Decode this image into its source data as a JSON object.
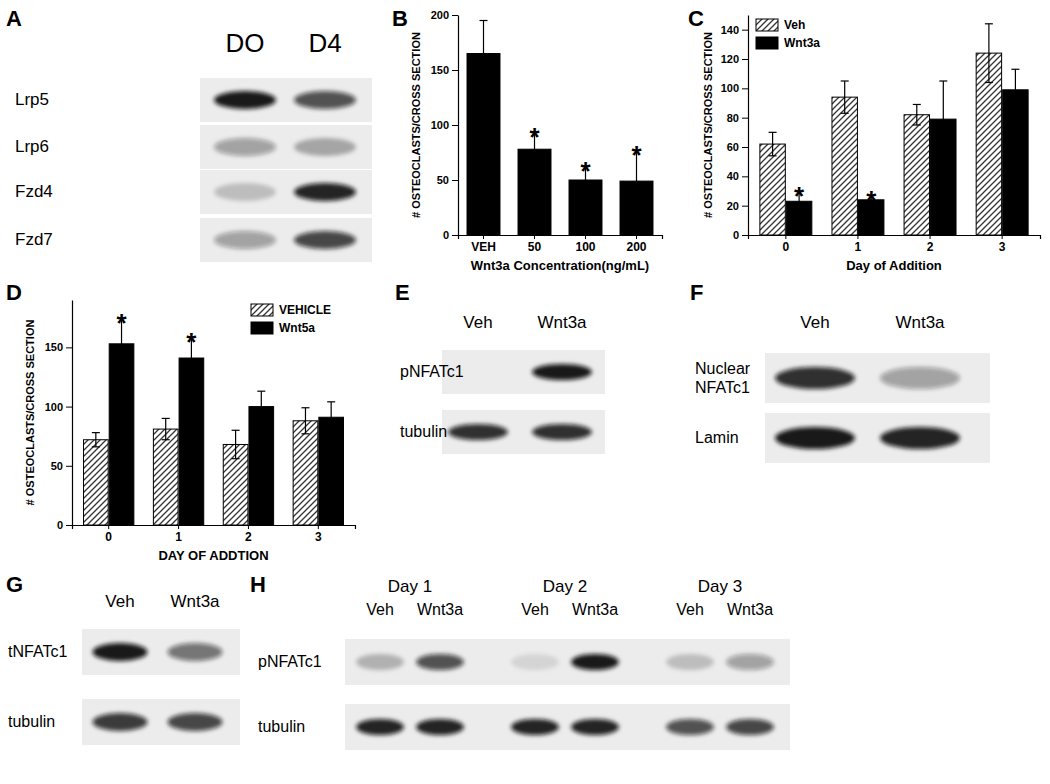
{
  "chart_data": [
    {
      "type": "bar",
      "title": "B",
      "categories": [
        "VEH",
        "50",
        "100",
        "200"
      ],
      "values": [
        165,
        78,
        50,
        49
      ],
      "errors": [
        30,
        16,
        13,
        28
      ],
      "annotations": [
        null,
        "*",
        "*",
        "*"
      ],
      "color": "#000000",
      "xlabel": "Wnt3a Concentration(ng/mL)",
      "ylabel": "# OSTEOCLASTS/CROSS SECTION",
      "ylim": [
        0,
        200
      ],
      "yticks": [
        0,
        50,
        100,
        150,
        200
      ]
    },
    {
      "type": "bar",
      "title": "C",
      "categories": [
        "0",
        "1",
        "2",
        "3"
      ],
      "series": [
        {
          "name": "Veh",
          "color": "#333333",
          "values": [
            62,
            94,
            82,
            124
          ],
          "errors": [
            8,
            11,
            7,
            20
          ]
        },
        {
          "name": "Wnt3a",
          "color": "#000000",
          "values": [
            23,
            24,
            79,
            99
          ],
          "errors": [
            7,
            3,
            26,
            14
          ],
          "annotations": [
            "*",
            "*",
            null,
            null
          ]
        }
      ],
      "xlabel": "Day of Addition",
      "ylabel": "# OSTEOCLASTS/CROSS SECTION",
      "ylim": [
        0,
        150
      ],
      "yticks": [
        0,
        20,
        40,
        60,
        80,
        100,
        120,
        140
      ],
      "legend": "top-left"
    },
    {
      "type": "bar",
      "title": "D",
      "categories": [
        "0",
        "1",
        "2",
        "3"
      ],
      "series": [
        {
          "name": "VEHICLE",
          "color": "#333333",
          "values": [
            72,
            81,
            68,
            88
          ],
          "errors": [
            6,
            9,
            12,
            11
          ]
        },
        {
          "name": "Wnt5a",
          "color": "#000000",
          "values": [
            153,
            141,
            100,
            91
          ],
          "errors": [
            22,
            18,
            13,
            13
          ],
          "annotations": [
            "*",
            "*",
            null,
            null
          ]
        }
      ],
      "xlabel": "DAY OF ADDTION",
      "ylabel": "# OSTEOCLASTS/CROSS SECTION",
      "ylim": [
        0,
        190
      ],
      "yticks": [
        0,
        50,
        100,
        150
      ],
      "legend": "top-right"
    }
  ],
  "blots": [
    {
      "title": "A",
      "lanes": [
        "DO",
        "D4"
      ],
      "rows": [
        {
          "label": "Lrp5",
          "intensity": [
            0.95,
            0.7
          ]
        },
        {
          "label": "Lrp6",
          "intensity": [
            0.35,
            0.3
          ]
        },
        {
          "label": "Fzd4",
          "intensity": [
            0.2,
            0.9
          ]
        },
        {
          "label": "Fzd7",
          "intensity": [
            0.35,
            0.75
          ]
        }
      ]
    },
    {
      "title": "E",
      "lanes": [
        "Veh",
        "Wnt3a"
      ],
      "rows": [
        {
          "label": "pNFATc1",
          "intensity": [
            0,
            0.95
          ]
        },
        {
          "label": "tubulin",
          "intensity": [
            0.85,
            0.85
          ]
        }
      ]
    },
    {
      "title": "F",
      "lanes": [
        "Veh",
        "Wnt3a"
      ],
      "rows": [
        {
          "label": "Nuclear NFATc1",
          "intensity": [
            0.85,
            0.35
          ]
        },
        {
          "label": "Lamin",
          "intensity": [
            0.95,
            0.9
          ]
        }
      ]
    },
    {
      "title": "G",
      "lanes": [
        "Veh",
        "Wnt3a"
      ],
      "rows": [
        {
          "label": "tNFATc1",
          "intensity": [
            0.95,
            0.55
          ]
        },
        {
          "label": "tubulin",
          "intensity": [
            0.8,
            0.75
          ]
        }
      ]
    },
    {
      "title": "H",
      "groups": [
        "Day 1",
        "Day 2",
        "Day 3"
      ],
      "lanes": [
        "Veh",
        "Wnt3a",
        "Veh",
        "Wnt3a",
        "Veh",
        "Wnt3a"
      ],
      "rows": [
        {
          "label": "pNFATc1",
          "intensity": [
            0.25,
            0.7,
            0.1,
            0.95,
            0.2,
            0.35
          ]
        },
        {
          "label": "tubulin",
          "intensity": [
            0.9,
            0.9,
            0.9,
            0.9,
            0.7,
            0.75
          ]
        }
      ]
    }
  ]
}
